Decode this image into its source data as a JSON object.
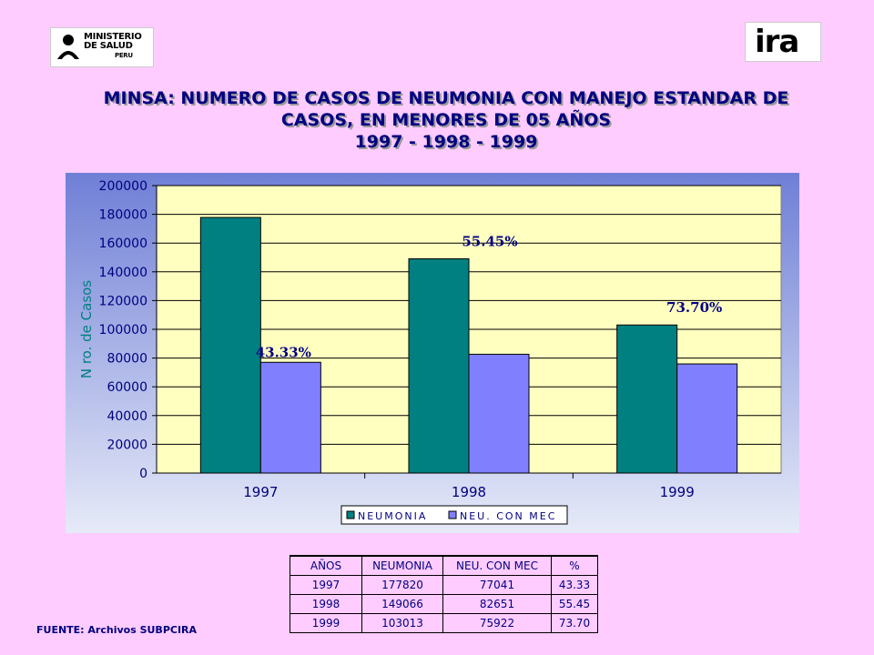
{
  "logos": {
    "left": {
      "line1": "MINISTERIO",
      "line2": "DE SALUD",
      "line3": "PERU"
    },
    "right": {
      "word": "ira"
    }
  },
  "title": {
    "line1": "MINSA: NUMERO DE CASOS DE NEUMONIA CON MANEJO ESTANDAR  DE",
    "line2": "CASOS, EN MENORES DE 05 AÑOS",
    "line3": "1997 - 1998 - 1999"
  },
  "colors": {
    "series1": "#008080",
    "series2": "#8080ff",
    "plot_bg": "#ffffc0",
    "chart_bg_top": "#6f7fd6",
    "chart_bg_bottom": "#e6eaf8",
    "text": "#000080"
  },
  "chart_data": {
    "type": "bar",
    "categories": [
      "1997",
      "1998",
      "1999"
    ],
    "series": [
      {
        "name": "NEUMONIA",
        "values": [
          177820,
          149066,
          103013
        ]
      },
      {
        "name": "NEU. CON MEC",
        "values": [
          77041,
          82651,
          75922
        ]
      }
    ],
    "ylabel": "N ro. de Casos",
    "ylim": [
      0,
      200000
    ],
    "yticks": [
      "0",
      "20000",
      "40000",
      "60000",
      "80000",
      "100000",
      "120000",
      "140000",
      "160000",
      "180000",
      "200000"
    ],
    "annotations": [
      "43.33%",
      "55.45%",
      "73.70%"
    ],
    "grid": true,
    "legend_position": "bottom"
  },
  "table": {
    "headers": [
      "AÑOS",
      "NEUMONIA",
      "NEU. CON MEC",
      "%"
    ],
    "rows": [
      [
        "1997",
        "177820",
        "77041",
        "43.33"
      ],
      [
        "1998",
        "149066",
        "82651",
        "55.45"
      ],
      [
        "1999",
        "103013",
        "75922",
        "73.70"
      ]
    ]
  },
  "source": "FUENTE: Archivos SUBPCIRA"
}
